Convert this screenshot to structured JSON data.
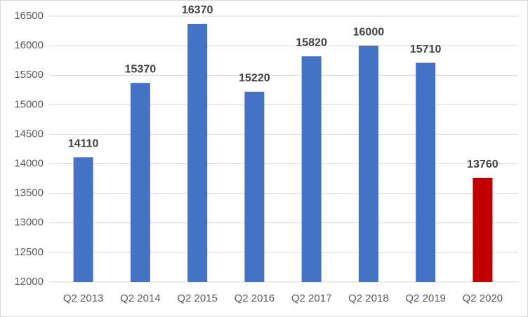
{
  "chart_data": {
    "type": "bar",
    "categories": [
      "Q2 2013",
      "Q2 2014",
      "Q2 2015",
      "Q2 2016",
      "Q2 2017",
      "Q2 2018",
      "Q2 2019",
      "Q2 2020"
    ],
    "values": [
      14110,
      15370,
      16370,
      15220,
      15820,
      16000,
      15710,
      13760
    ],
    "colors": [
      "#4472c4",
      "#4472c4",
      "#4472c4",
      "#4472c4",
      "#4472c4",
      "#4472c4",
      "#4472c4",
      "#c00000"
    ],
    "ylim": [
      12000,
      16500
    ],
    "yticks": [
      12000,
      12500,
      13000,
      13500,
      14000,
      14500,
      15000,
      15500,
      16000,
      16500
    ],
    "grid": true
  }
}
